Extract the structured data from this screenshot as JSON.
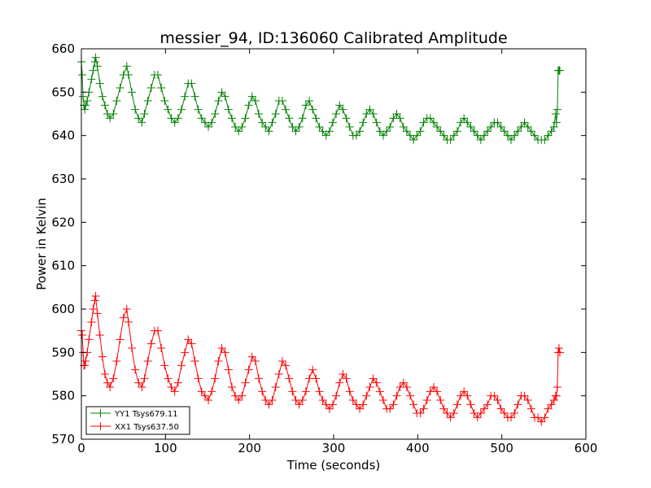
{
  "chart_data": {
    "type": "line",
    "title": "messier_94, ID:136060 Calibrated Amplitude",
    "xlabel": "Time (seconds)",
    "ylabel": "Power in Kelvin",
    "xlim": [
      0,
      600
    ],
    "ylim": [
      570,
      660
    ],
    "xticks": [
      0,
      100,
      200,
      300,
      400,
      500,
      600
    ],
    "yticks": [
      570,
      580,
      590,
      600,
      610,
      620,
      630,
      640,
      650,
      660
    ],
    "grid": false,
    "legend_position": "lower-left",
    "marker": "plus",
    "series": [
      {
        "name": "YY1 Tsys679.11",
        "color": "#008000",
        "x": [
          0,
          1,
          2,
          3,
          4,
          5,
          7,
          9,
          12,
          14,
          16,
          17,
          19,
          22,
          25,
          28,
          31,
          34,
          38,
          42,
          46,
          50,
          54,
          56,
          60,
          64,
          68,
          72,
          75,
          79,
          83,
          87,
          91,
          95,
          99,
          103,
          107,
          111,
          115,
          119,
          123,
          127,
          131,
          135,
          139,
          143,
          147,
          151,
          155,
          159,
          163,
          167,
          171,
          175,
          179,
          183,
          187,
          191,
          195,
          199,
          203,
          207,
          211,
          215,
          219,
          223,
          227,
          231,
          235,
          239,
          243,
          247,
          251,
          255,
          259,
          263,
          267,
          271,
          275,
          279,
          283,
          287,
          291,
          295,
          299,
          303,
          307,
          311,
          315,
          319,
          323,
          327,
          331,
          335,
          339,
          343,
          347,
          351,
          355,
          359,
          363,
          367,
          371,
          375,
          379,
          383,
          387,
          391,
          395,
          399,
          403,
          407,
          411,
          415,
          419,
          423,
          427,
          431,
          435,
          439,
          443,
          447,
          451,
          455,
          459,
          463,
          467,
          471,
          475,
          479,
          483,
          487,
          491,
          495,
          499,
          503,
          507,
          511,
          515,
          519,
          523,
          527,
          531,
          535,
          539,
          543,
          547,
          551,
          555,
          559,
          562,
          564,
          565,
          566,
          567,
          568,
          569
        ],
        "values": [
          657,
          654,
          649,
          647,
          646,
          647,
          648,
          650,
          653,
          655,
          657,
          658,
          656,
          652,
          649,
          647,
          645,
          644,
          645,
          648,
          651,
          654,
          656,
          654,
          650,
          646,
          644,
          643,
          645,
          648,
          651,
          654,
          654,
          651,
          648,
          646,
          644,
          643,
          644,
          646,
          649,
          652,
          652,
          649,
          646,
          644,
          643,
          642,
          643,
          645,
          648,
          650,
          649,
          646,
          644,
          642,
          641,
          642,
          644,
          647,
          649,
          648,
          645,
          643,
          642,
          641,
          643,
          645,
          648,
          648,
          646,
          644,
          642,
          641,
          642,
          644,
          647,
          648,
          646,
          644,
          642,
          641,
          640,
          641,
          643,
          645,
          647,
          646,
          644,
          642,
          640,
          640,
          641,
          643,
          645,
          646,
          645,
          643,
          641,
          640,
          641,
          642,
          644,
          645,
          644,
          642,
          641,
          640,
          639,
          640,
          641,
          643,
          644,
          644,
          643,
          642,
          641,
          640,
          639,
          639,
          640,
          641,
          643,
          644,
          643,
          642,
          641,
          640,
          639,
          640,
          641,
          642,
          643,
          643,
          642,
          641,
          640,
          639,
          640,
          641,
          642,
          643,
          642,
          641,
          640,
          639,
          639,
          639,
          640,
          641,
          642,
          645,
          643,
          646,
          655,
          655,
          655
        ]
      },
      {
        "name": "XX1 Tsys637.50",
        "color": "#ff0000",
        "x": [
          0,
          1,
          2,
          3,
          4,
          5,
          7,
          9,
          12,
          14,
          16,
          17,
          19,
          22,
          25,
          28,
          31,
          34,
          38,
          42,
          46,
          50,
          54,
          56,
          60,
          64,
          68,
          72,
          75,
          79,
          83,
          87,
          91,
          95,
          99,
          103,
          107,
          111,
          115,
          119,
          123,
          127,
          131,
          135,
          139,
          143,
          147,
          151,
          155,
          159,
          163,
          167,
          171,
          175,
          179,
          183,
          187,
          191,
          195,
          199,
          203,
          207,
          211,
          215,
          219,
          223,
          227,
          231,
          235,
          239,
          243,
          247,
          251,
          255,
          259,
          263,
          267,
          271,
          275,
          279,
          283,
          287,
          291,
          295,
          299,
          303,
          307,
          311,
          315,
          319,
          323,
          327,
          331,
          335,
          339,
          343,
          347,
          351,
          355,
          359,
          363,
          367,
          371,
          375,
          379,
          383,
          387,
          391,
          395,
          399,
          403,
          407,
          411,
          415,
          419,
          423,
          427,
          431,
          435,
          439,
          443,
          447,
          451,
          455,
          459,
          463,
          467,
          471,
          475,
          479,
          483,
          487,
          491,
          495,
          499,
          503,
          507,
          511,
          515,
          519,
          523,
          527,
          531,
          535,
          539,
          543,
          547,
          551,
          555,
          559,
          562,
          564,
          565,
          566,
          567,
          568,
          569
        ],
        "values": [
          595,
          594,
          590,
          587,
          587,
          588,
          590,
          593,
          597,
          600,
          602,
          603,
          599,
          594,
          589,
          585,
          583,
          582,
          584,
          588,
          593,
          598,
          600,
          597,
          591,
          586,
          583,
          582,
          584,
          588,
          592,
          595,
          595,
          591,
          587,
          584,
          582,
          581,
          583,
          587,
          590,
          593,
          592,
          588,
          584,
          581,
          580,
          579,
          581,
          584,
          588,
          591,
          590,
          586,
          582,
          580,
          579,
          580,
          583,
          586,
          589,
          588,
          584,
          581,
          579,
          578,
          579,
          582,
          585,
          588,
          587,
          584,
          581,
          579,
          578,
          579,
          581,
          584,
          586,
          584,
          581,
          579,
          578,
          577,
          578,
          580,
          583,
          585,
          584,
          581,
          579,
          578,
          577,
          578,
          580,
          582,
          584,
          583,
          581,
          579,
          577,
          577,
          578,
          580,
          582,
          583,
          582,
          580,
          578,
          576,
          576,
          577,
          579,
          581,
          582,
          581,
          579,
          577,
          576,
          575,
          576,
          578,
          580,
          581,
          580,
          578,
          576,
          575,
          576,
          577,
          578,
          580,
          580,
          579,
          577,
          576,
          575,
          575,
          576,
          578,
          580,
          580,
          579,
          577,
          575,
          575,
          574,
          575,
          577,
          578,
          579,
          580,
          580,
          582,
          590,
          591,
          590
        ]
      }
    ]
  }
}
